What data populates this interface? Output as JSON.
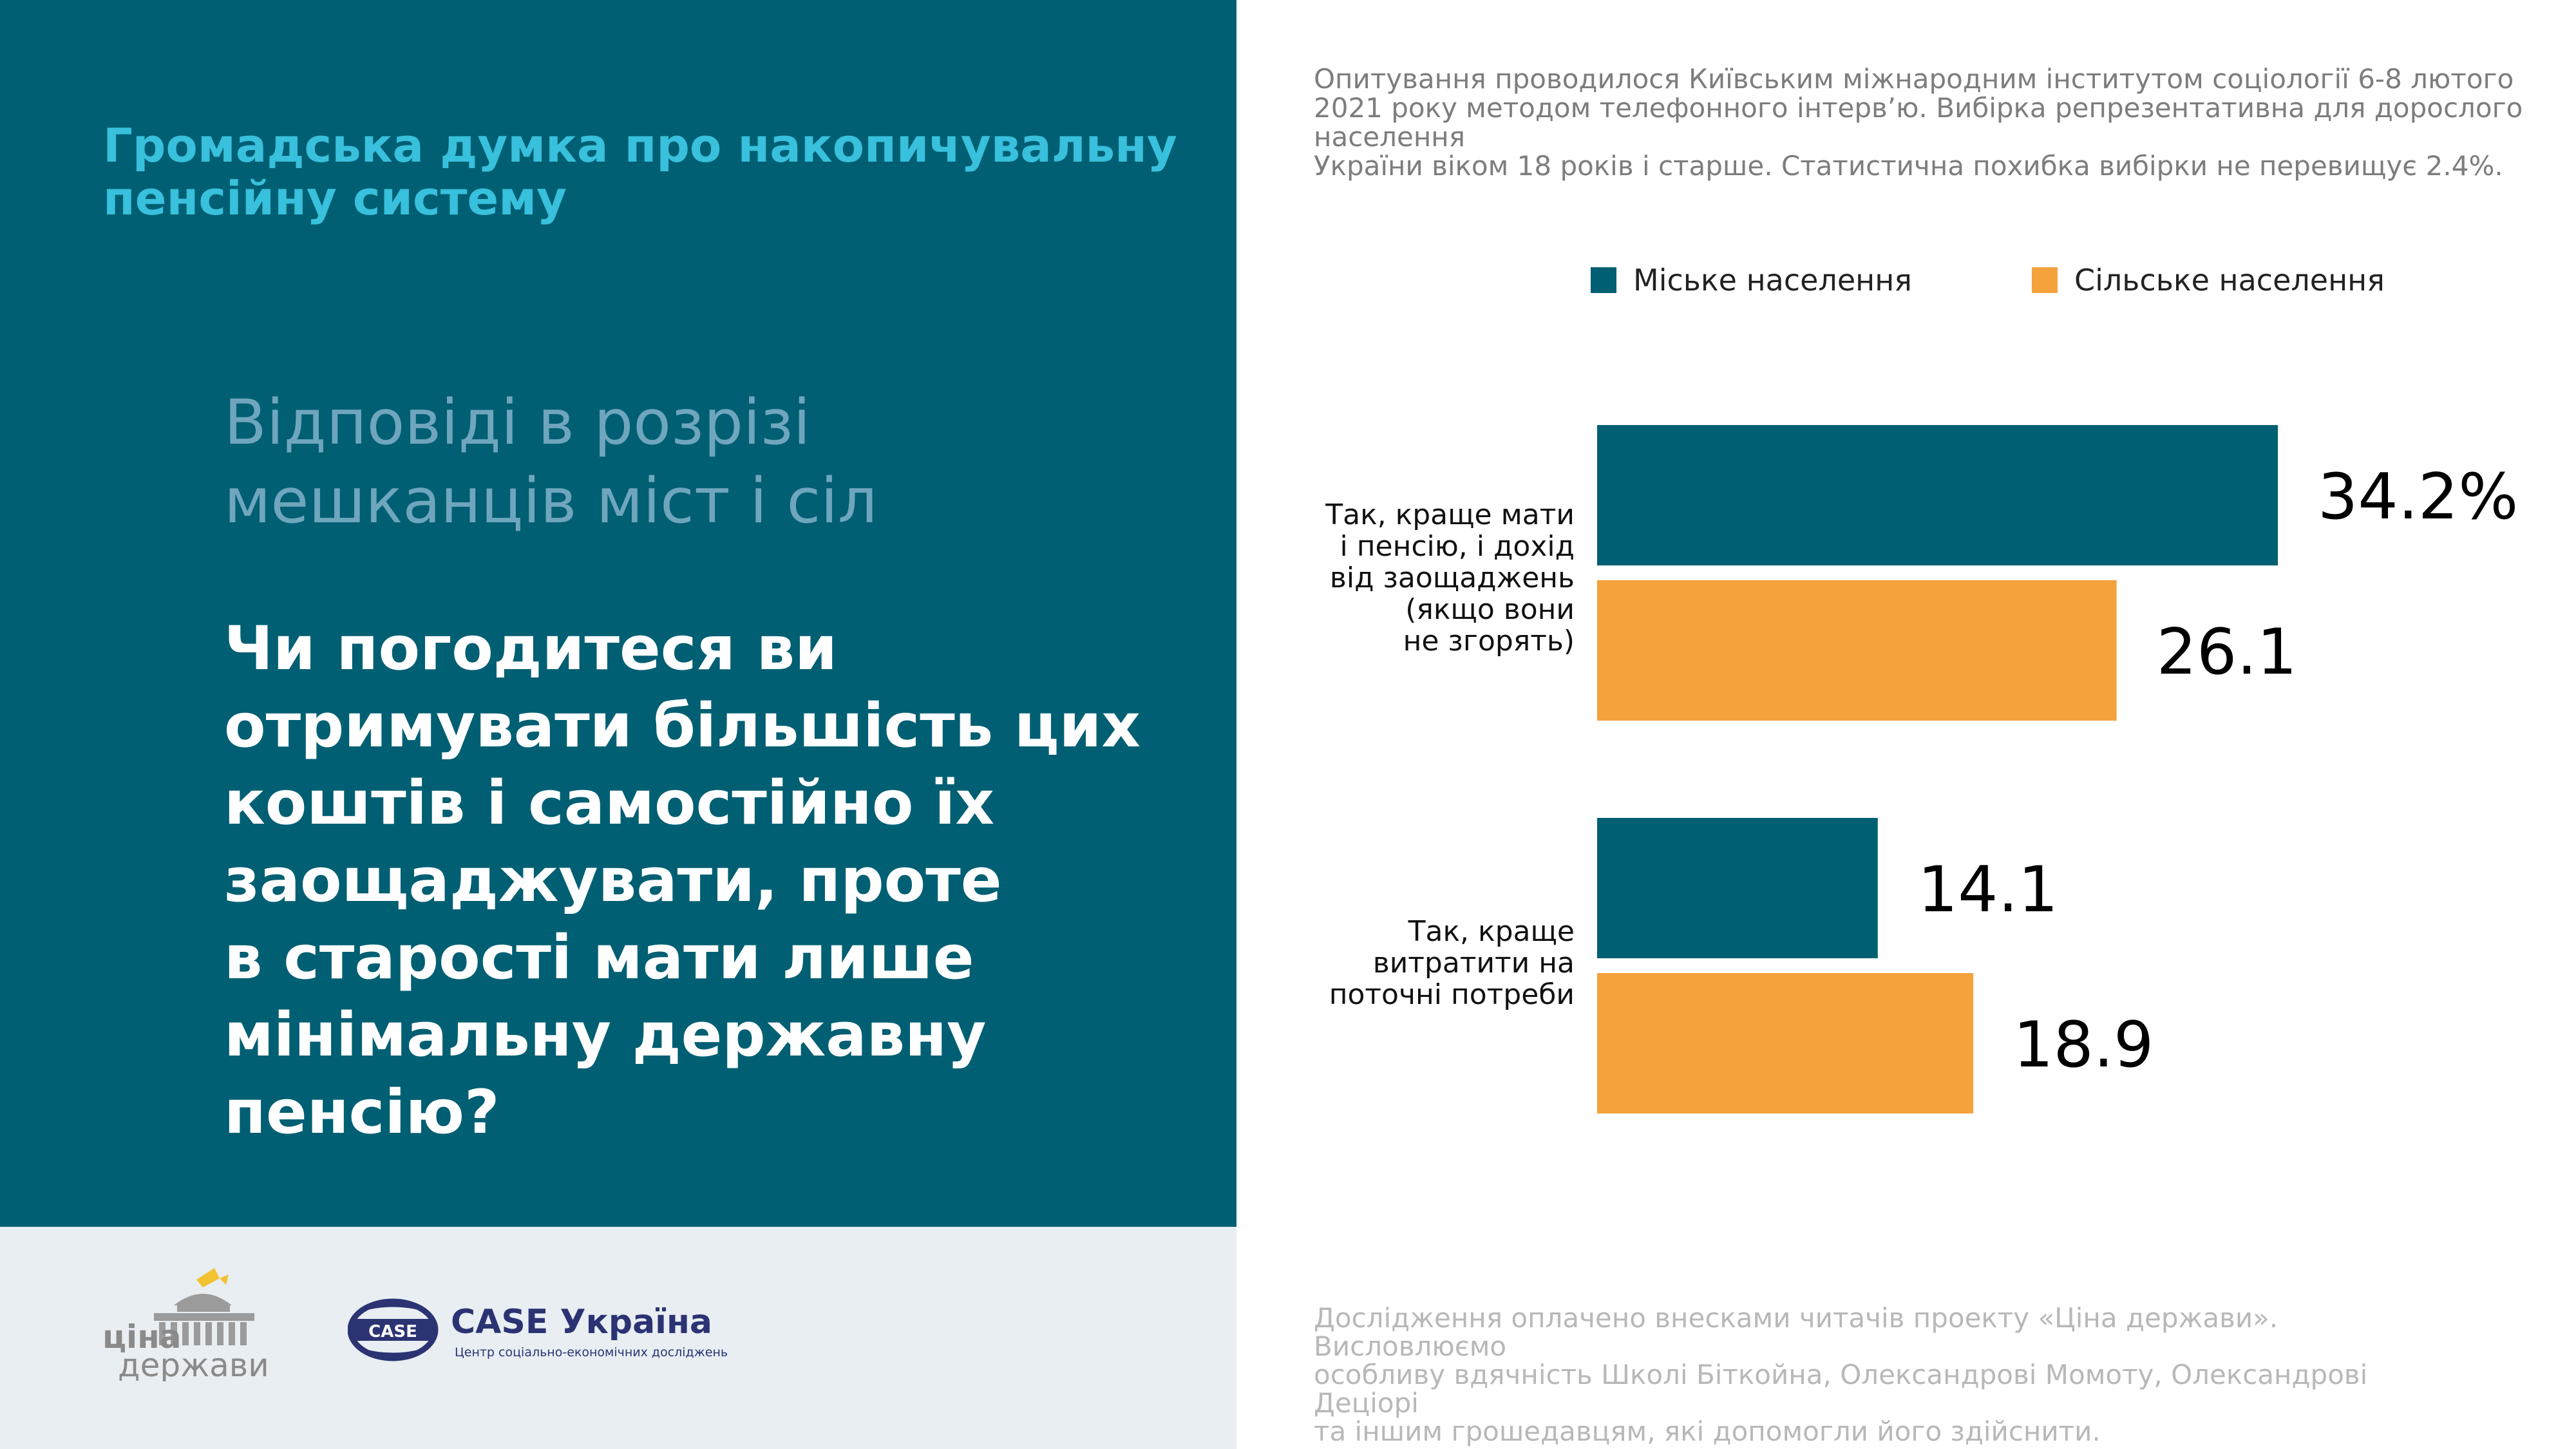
{
  "left": {
    "title_lines": [
      "Громадська думка про накопичувальну",
      "пенсійну систему"
    ],
    "subtitle_lines": [
      "Відповіді в розрізі",
      "мешканців міст і сіл"
    ],
    "question_lines": [
      "Чи погодитеся ви",
      "отримувати більшість цих",
      "коштів і самостійно їх",
      "заощаджувати, проте",
      "в старості мати лише",
      "мінімальну державну",
      "пенсію?"
    ]
  },
  "logos": {
    "cina_line1": "ціна",
    "cina_line2": "держави",
    "case_badge": "CASE",
    "case_name": "CASE Україна",
    "case_tagline": "Центр соціально-економічних досліджень"
  },
  "survey_note_lines": [
    "Опитування проводилося Київським міжнародним інститутом соціології 6-8 лютого",
    "2021 року методом телефонного інтерв’ю. Вибірка репрезентативна для дорослого населення",
    "України віком 18 років і старше. Статистична похибка вибірки не перевищує 2.4%."
  ],
  "funding_note_lines": [
    "Дослідження оплачено внесками читачів проекту «Ціна держави». Висловлюємо",
    "особливу вдячність Школі Біткойна, Олександрові Момоту, Олександрові Деціорі",
    "та іншим грошедавцям, які допомогли його здійснити."
  ],
  "colors": {
    "panel": "#005f73",
    "urban": "#005f73",
    "rural": "#f4a23c",
    "title_accent": "#38c0dc"
  },
  "chart_data": {
    "type": "bar",
    "orientation": "horizontal",
    "categories": [
      "Так, краще мати і пенсію, і дохід від заощаджень (якщо вони не згорять)",
      "Так, краще витратити на поточні потреби"
    ],
    "category_label_lines": [
      [
        "Так, краще мати",
        "і пенсію, і дохід",
        "від заощаджень",
        "(якщо вони",
        "не згорять)"
      ],
      [
        "Так, краще",
        "витратити на",
        "поточні потреби"
      ]
    ],
    "series": [
      {
        "name": "Міське населення",
        "values": [
          34.2,
          14.1
        ],
        "labels": [
          "34.2%",
          "14.1"
        ],
        "color": "#005f73"
      },
      {
        "name": "Сільське населення",
        "values": [
          26.1,
          18.9
        ],
        "labels": [
          "26.1",
          "18.9"
        ],
        "color": "#f4a23c"
      }
    ],
    "unit": "%",
    "xlim": [
      0,
      34.2
    ],
    "grid": false,
    "legend_position": "top"
  }
}
